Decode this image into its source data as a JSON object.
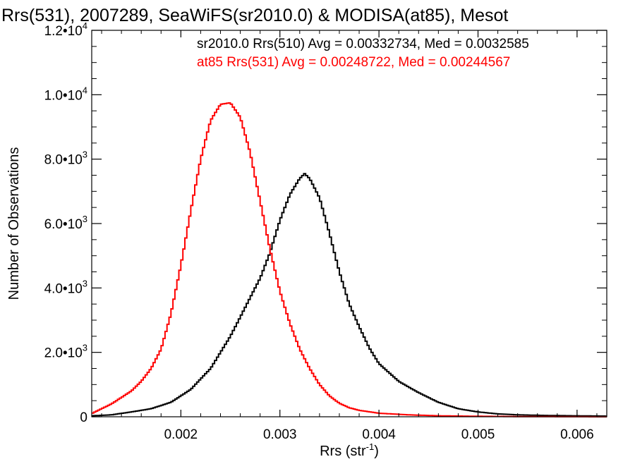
{
  "chart_data": {
    "type": "histogram-step",
    "title": "Rrs(531), 2007289, SeaWiFS(sr2010.0) & MODISA(at85), Mesot",
    "xlabel": "Rrs (str",
    "xlabel_exp": "-1",
    "xlabel_close": ")",
    "ylabel": "Number of Observations",
    "xlim": [
      0.0011,
      0.0063
    ],
    "ylim": [
      0,
      12000
    ],
    "x_ticks": [
      {
        "value": 0.002,
        "label": "0.002"
      },
      {
        "value": 0.003,
        "label": "0.003"
      },
      {
        "value": 0.004,
        "label": "0.004"
      },
      {
        "value": 0.005,
        "label": "0.005"
      },
      {
        "value": 0.006,
        "label": "0.006"
      }
    ],
    "y_ticks": [
      {
        "value": 0,
        "mant": "0",
        "exp": ""
      },
      {
        "value": 2000,
        "mant": "2.0•10",
        "exp": "3"
      },
      {
        "value": 4000,
        "mant": "4.0•10",
        "exp": "3"
      },
      {
        "value": 6000,
        "mant": "6.0•10",
        "exp": "3"
      },
      {
        "value": 8000,
        "mant": "8.0•10",
        "exp": "3"
      },
      {
        "value": 10000,
        "mant": "1.0•10",
        "exp": "4"
      },
      {
        "value": 12000,
        "mant": "1.2•10",
        "exp": "4"
      }
    ],
    "series": [
      {
        "name": "sr2010.0 Rrs(510) Avg = 0.00332734, Med = 0.0032585",
        "color": "#000000",
        "points": [
          [
            0.0011,
            30
          ],
          [
            0.0013,
            60
          ],
          [
            0.0015,
            150
          ],
          [
            0.0017,
            250
          ],
          [
            0.0019,
            450
          ],
          [
            0.0021,
            850
          ],
          [
            0.0023,
            1500
          ],
          [
            0.0025,
            2500
          ],
          [
            0.0027,
            3700
          ],
          [
            0.0028,
            4300
          ],
          [
            0.0029,
            5100
          ],
          [
            0.003,
            6100
          ],
          [
            0.0031,
            6900
          ],
          [
            0.0032,
            7400
          ],
          [
            0.00325,
            7550
          ],
          [
            0.0033,
            7400
          ],
          [
            0.0034,
            6800
          ],
          [
            0.0035,
            5700
          ],
          [
            0.0036,
            4500
          ],
          [
            0.0037,
            3500
          ],
          [
            0.0038,
            2800
          ],
          [
            0.0039,
            2150
          ],
          [
            0.004,
            1650
          ],
          [
            0.0042,
            1100
          ],
          [
            0.0044,
            750
          ],
          [
            0.0046,
            450
          ],
          [
            0.0048,
            250
          ],
          [
            0.005,
            150
          ],
          [
            0.0052,
            90
          ],
          [
            0.0054,
            60
          ],
          [
            0.0057,
            40
          ],
          [
            0.006,
            30
          ],
          [
            0.0063,
            20
          ]
        ]
      },
      {
        "name": "at85 Rrs(531) Avg = 0.00248722, Med = 0.00244567",
        "color": "#ff0000",
        "points": [
          [
            0.0011,
            100
          ],
          [
            0.0012,
            250
          ],
          [
            0.0013,
            400
          ],
          [
            0.0014,
            600
          ],
          [
            0.0015,
            800
          ],
          [
            0.0016,
            1100
          ],
          [
            0.0017,
            1500
          ],
          [
            0.0018,
            2100
          ],
          [
            0.0019,
            3200
          ],
          [
            0.002,
            4700
          ],
          [
            0.0021,
            6400
          ],
          [
            0.0022,
            8000
          ],
          [
            0.0023,
            9200
          ],
          [
            0.0024,
            9700
          ],
          [
            0.0025,
            9750
          ],
          [
            0.0026,
            9300
          ],
          [
            0.0027,
            8200
          ],
          [
            0.0028,
            6700
          ],
          [
            0.0029,
            5200
          ],
          [
            0.003,
            3900
          ],
          [
            0.0031,
            2900
          ],
          [
            0.0032,
            2100
          ],
          [
            0.0033,
            1500
          ],
          [
            0.0034,
            1000
          ],
          [
            0.0035,
            650
          ],
          [
            0.0036,
            420
          ],
          [
            0.0037,
            280
          ],
          [
            0.0038,
            200
          ],
          [
            0.004,
            110
          ],
          [
            0.0043,
            60
          ],
          [
            0.0046,
            30
          ],
          [
            0.005,
            15
          ],
          [
            0.0055,
            5
          ],
          [
            0.0063,
            0
          ]
        ]
      }
    ]
  }
}
